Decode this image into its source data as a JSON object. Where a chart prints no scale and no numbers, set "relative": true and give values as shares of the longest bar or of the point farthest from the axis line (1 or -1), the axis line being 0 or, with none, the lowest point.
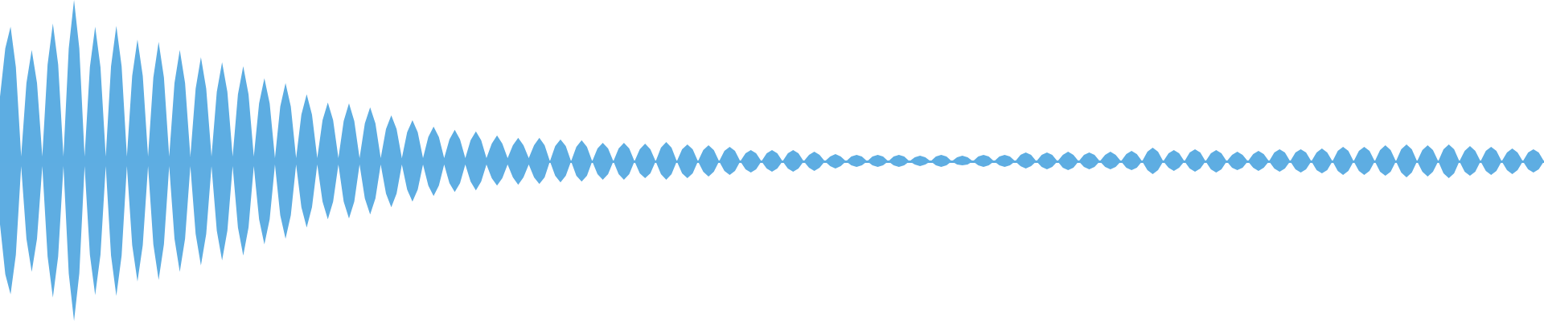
{
  "chart_data": {
    "type": "area",
    "relative": true,
    "ref_lines": [
      {
        "axis": "y",
        "value": 0,
        "color": "#5dade2"
      }
    ],
    "categories": [
      null,
      null,
      null,
      null,
      null,
      null,
      null,
      null,
      null,
      null,
      null,
      null,
      null,
      null,
      null,
      null,
      null,
      null,
      null,
      null,
      null,
      null,
      null,
      null,
      null,
      null,
      null,
      null,
      null,
      null,
      null,
      null,
      null,
      null,
      null,
      null,
      null,
      null,
      null,
      null,
      null,
      null,
      null,
      null,
      null,
      null,
      null,
      null,
      null,
      null,
      null,
      null,
      null,
      null,
      null,
      null,
      null,
      null,
      null,
      null,
      null,
      null,
      null,
      null,
      null,
      null,
      null,
      null,
      null,
      null,
      null,
      null,
      null,
      null,
      null,
      null,
      null,
      null,
      null,
      null,
      null,
      null,
      null,
      null,
      null,
      null,
      null,
      null,
      null,
      null,
      null,
      null,
      null,
      null,
      null,
      null,
      null,
      null,
      null,
      null,
      null,
      null,
      null,
      null,
      null,
      null,
      null,
      null,
      null,
      null,
      null,
      null,
      null,
      null,
      null,
      null,
      null,
      null,
      null,
      null,
      null,
      null,
      null,
      null,
      null,
      null,
      null,
      null,
      null,
      null,
      null,
      null,
      null,
      null,
      null,
      null,
      null,
      null,
      null,
      null,
      null,
      null,
      null,
      null,
      null,
      null,
      null,
      null,
      null,
      null,
      null,
      null,
      null,
      null,
      null,
      null,
      null,
      null,
      null,
      null,
      null,
      null,
      null,
      null,
      null,
      null,
      null,
      null,
      null,
      null,
      null,
      null,
      null,
      null,
      null,
      null,
      null,
      null,
      null,
      null,
      null,
      null,
      null,
      null,
      null,
      null,
      null,
      null,
      null,
      null,
      null,
      null,
      null,
      null,
      null,
      null,
      null,
      null,
      null,
      null,
      null,
      null,
      null,
      null,
      null,
      null,
      null,
      null,
      null,
      null,
      null,
      null,
      null,
      null,
      null,
      null,
      null,
      null,
      null,
      null,
      null,
      null,
      null,
      null,
      null,
      null,
      null,
      null,
      null,
      null,
      null,
      null,
      null,
      null,
      null,
      null,
      null,
      null,
      null,
      null,
      null,
      null,
      null,
      null,
      null,
      null,
      null,
      null,
      null,
      null,
      null,
      null,
      null,
      null,
      null,
      null,
      null,
      null,
      null,
      null,
      null,
      null,
      null,
      null,
      null,
      null,
      null,
      null,
      null,
      null,
      null,
      null,
      null,
      null,
      null,
      null,
      null,
      null,
      null,
      null,
      null,
      null,
      null,
      null,
      null,
      null,
      null,
      null,
      null,
      null,
      null,
      null,
      null
    ],
    "series": [
      {
        "color": "#5dade2",
        "values": [
          0.4,
          0.7,
          0.835,
          0.585,
          0.03,
          0.485,
          0.69,
          0.485,
          0.03,
          0.6,
          0.855,
          0.6,
          0.03,
          0.7,
          1.0,
          0.7,
          0.03,
          0.585,
          0.835,
          0.585,
          0.03,
          0.59,
          0.84,
          0.59,
          0.03,
          0.53,
          0.755,
          0.53,
          0.03,
          0.52,
          0.74,
          0.52,
          0.03,
          0.485,
          0.69,
          0.485,
          0.03,
          0.45,
          0.645,
          0.45,
          0.03,
          0.43,
          0.615,
          0.43,
          0.03,
          0.415,
          0.59,
          0.415,
          0.03,
          0.36,
          0.515,
          0.36,
          0.02,
          0.34,
          0.485,
          0.34,
          0.02,
          0.29,
          0.415,
          0.29,
          0.02,
          0.255,
          0.365,
          0.255,
          0.02,
          0.25,
          0.36,
          0.25,
          0.02,
          0.235,
          0.335,
          0.235,
          0.02,
          0.2,
          0.285,
          0.2,
          0.02,
          0.18,
          0.255,
          0.18,
          0.02,
          0.15,
          0.215,
          0.15,
          0.02,
          0.135,
          0.195,
          0.135,
          0.02,
          0.13,
          0.185,
          0.13,
          0.02,
          0.11,
          0.16,
          0.11,
          0.02,
          0.1,
          0.145,
          0.1,
          0.02,
          0.1,
          0.145,
          0.1,
          0,
          0.095,
          0.135,
          0.095,
          0,
          0.09,
          0.13,
          0.09,
          0,
          0.08,
          0.115,
          0.08,
          0,
          0.08,
          0.115,
          0.08,
          0,
          0.075,
          0.11,
          0.075,
          0,
          0.085,
          0.12,
          0.085,
          0,
          0.075,
          0.105,
          0.075,
          0,
          0.07,
          0.1,
          0.07,
          0,
          0.065,
          0.09,
          0.065,
          0,
          0.05,
          0.07,
          0.05,
          0,
          0.05,
          0.07,
          0.05,
          0,
          0.05,
          0.07,
          0.05,
          0,
          0.04,
          0.06,
          0.04,
          0,
          0.03,
          0.045,
          0.03,
          0,
          0.03,
          0.04,
          0.03,
          0,
          0.03,
          0.04,
          0.03,
          0,
          0.03,
          0.04,
          0.03,
          0,
          0.025,
          0.035,
          0.025,
          0,
          0.03,
          0.04,
          0.03,
          0,
          0.025,
          0.035,
          0.025,
          0,
          0.03,
          0.04,
          0.03,
          0,
          0.03,
          0.04,
          0.03,
          0,
          0.04,
          0.055,
          0.04,
          0,
          0.04,
          0.055,
          0.04,
          0,
          0.04,
          0.06,
          0.04,
          0,
          0.04,
          0.055,
          0.04,
          0,
          0.04,
          0.06,
          0.04,
          0,
          0.045,
          0.065,
          0.045,
          0,
          0.06,
          0.085,
          0.06,
          0,
          0.05,
          0.07,
          0.05,
          0,
          0.055,
          0.075,
          0.055,
          0,
          0.05,
          0.07,
          0.05,
          0,
          0.04,
          0.06,
          0.04,
          0,
          0.045,
          0.065,
          0.045,
          0,
          0.055,
          0.075,
          0.055,
          0,
          0.055,
          0.075,
          0.055,
          0,
          0.055,
          0.08,
          0.055,
          0,
          0.065,
          0.09,
          0.065,
          0,
          0.065,
          0.09,
          0.065,
          0,
          0.07,
          0.1,
          0.07,
          0,
          0.075,
          0.105,
          0.075,
          0,
          0.07,
          0.1,
          0.07,
          0,
          0.075,
          0.105,
          0.075,
          0,
          0.065,
          0.095,
          0.065,
          0,
          0.065,
          0.09,
          0.065,
          0,
          0.055,
          0.08,
          0.055,
          0,
          0.055,
          0.075,
          0.055,
          0
        ]
      },
      {
        "color": "#5eade2",
        "values": [
          -0.39,
          -0.7,
          -0.825,
          -0.58,
          -0.03,
          -0.48,
          -0.685,
          -0.48,
          -0.03,
          -0.59,
          -0.845,
          -0.59,
          -0.03,
          -0.695,
          -0.99,
          -0.695,
          -0.03,
          -0.58,
          -0.83,
          -0.58,
          -0.03,
          -0.585,
          -0.835,
          -0.585,
          -0.03,
          -0.52,
          -0.745,
          -0.52,
          -0.03,
          -0.515,
          -0.735,
          -0.515,
          -0.03,
          -0.48,
          -0.685,
          -0.48,
          -0.03,
          -0.45,
          -0.645,
          -0.45,
          -0.03,
          -0.43,
          -0.615,
          -0.43,
          -0.03,
          -0.41,
          -0.585,
          -0.41,
          -0.03,
          -0.36,
          -0.515,
          -0.36,
          -0.02,
          -0.335,
          -0.48,
          -0.335,
          -0.02,
          -0.285,
          -0.41,
          -0.285,
          -0.02,
          -0.25,
          -0.36,
          -0.25,
          -0.02,
          -0.25,
          -0.355,
          -0.25,
          -0.02,
          -0.23,
          -0.33,
          -0.23,
          -0.02,
          -0.2,
          -0.285,
          -0.2,
          -0.02,
          -0.175,
          -0.25,
          -0.175,
          -0.02,
          -0.15,
          -0.215,
          -0.15,
          -0.02,
          -0.135,
          -0.19,
          -0.135,
          -0.02,
          -0.125,
          -0.18,
          -0.125,
          -0.02,
          -0.105,
          -0.15,
          -0.105,
          -0.02,
          -0.1,
          -0.145,
          -0.1,
          -0.02,
          -0.1,
          -0.14,
          -0.1,
          0,
          -0.09,
          -0.13,
          -0.09,
          0,
          -0.09,
          -0.125,
          -0.09,
          0,
          -0.08,
          -0.115,
          -0.08,
          0,
          -0.08,
          -0.115,
          -0.08,
          0,
          -0.075,
          -0.105,
          -0.075,
          0,
          -0.08,
          -0.115,
          -0.08,
          0,
          -0.075,
          -0.105,
          -0.075,
          0,
          -0.065,
          -0.095,
          -0.065,
          0,
          -0.06,
          -0.085,
          -0.06,
          0,
          -0.05,
          -0.07,
          -0.05,
          0,
          -0.045,
          -0.065,
          -0.045,
          0,
          -0.045,
          -0.065,
          -0.045,
          0,
          -0.04,
          -0.06,
          -0.04,
          0,
          -0.03,
          -0.045,
          -0.03,
          0,
          -0.025,
          -0.035,
          -0.025,
          0,
          -0.025,
          -0.035,
          -0.025,
          0,
          -0.025,
          -0.035,
          -0.025,
          0,
          -0.02,
          -0.03,
          -0.02,
          0,
          -0.025,
          -0.035,
          -0.025,
          0,
          -0.02,
          -0.025,
          -0.02,
          0,
          -0.025,
          -0.035,
          -0.025,
          0,
          -0.025,
          -0.035,
          -0.025,
          0,
          -0.03,
          -0.045,
          -0.03,
          0,
          -0.035,
          -0.05,
          -0.035,
          0,
          -0.04,
          -0.055,
          -0.04,
          0,
          -0.035,
          -0.05,
          -0.035,
          0,
          -0.035,
          -0.05,
          -0.035,
          0,
          -0.04,
          -0.055,
          -0.04,
          0,
          -0.055,
          -0.08,
          -0.055,
          0,
          -0.04,
          -0.06,
          -0.04,
          0,
          -0.045,
          -0.065,
          -0.045,
          0,
          -0.05,
          -0.07,
          -0.05,
          0,
          -0.04,
          -0.055,
          -0.04,
          0,
          -0.04,
          -0.06,
          -0.04,
          0,
          -0.045,
          -0.065,
          -0.045,
          0,
          -0.05,
          -0.07,
          -0.05,
          0,
          -0.055,
          -0.075,
          -0.055,
          0,
          -0.06,
          -0.085,
          -0.06,
          0,
          -0.06,
          -0.085,
          -0.06,
          0,
          -0.065,
          -0.09,
          -0.065,
          0,
          -0.07,
          -0.1,
          -0.07,
          0,
          -0.065,
          -0.095,
          -0.065,
          0,
          -0.075,
          -0.105,
          -0.075,
          0,
          -0.065,
          -0.09,
          -0.065,
          0,
          -0.06,
          -0.085,
          -0.06,
          0,
          -0.055,
          -0.08,
          -0.055,
          0,
          -0.05,
          -0.07,
          -0.05,
          0
        ]
      }
    ]
  }
}
